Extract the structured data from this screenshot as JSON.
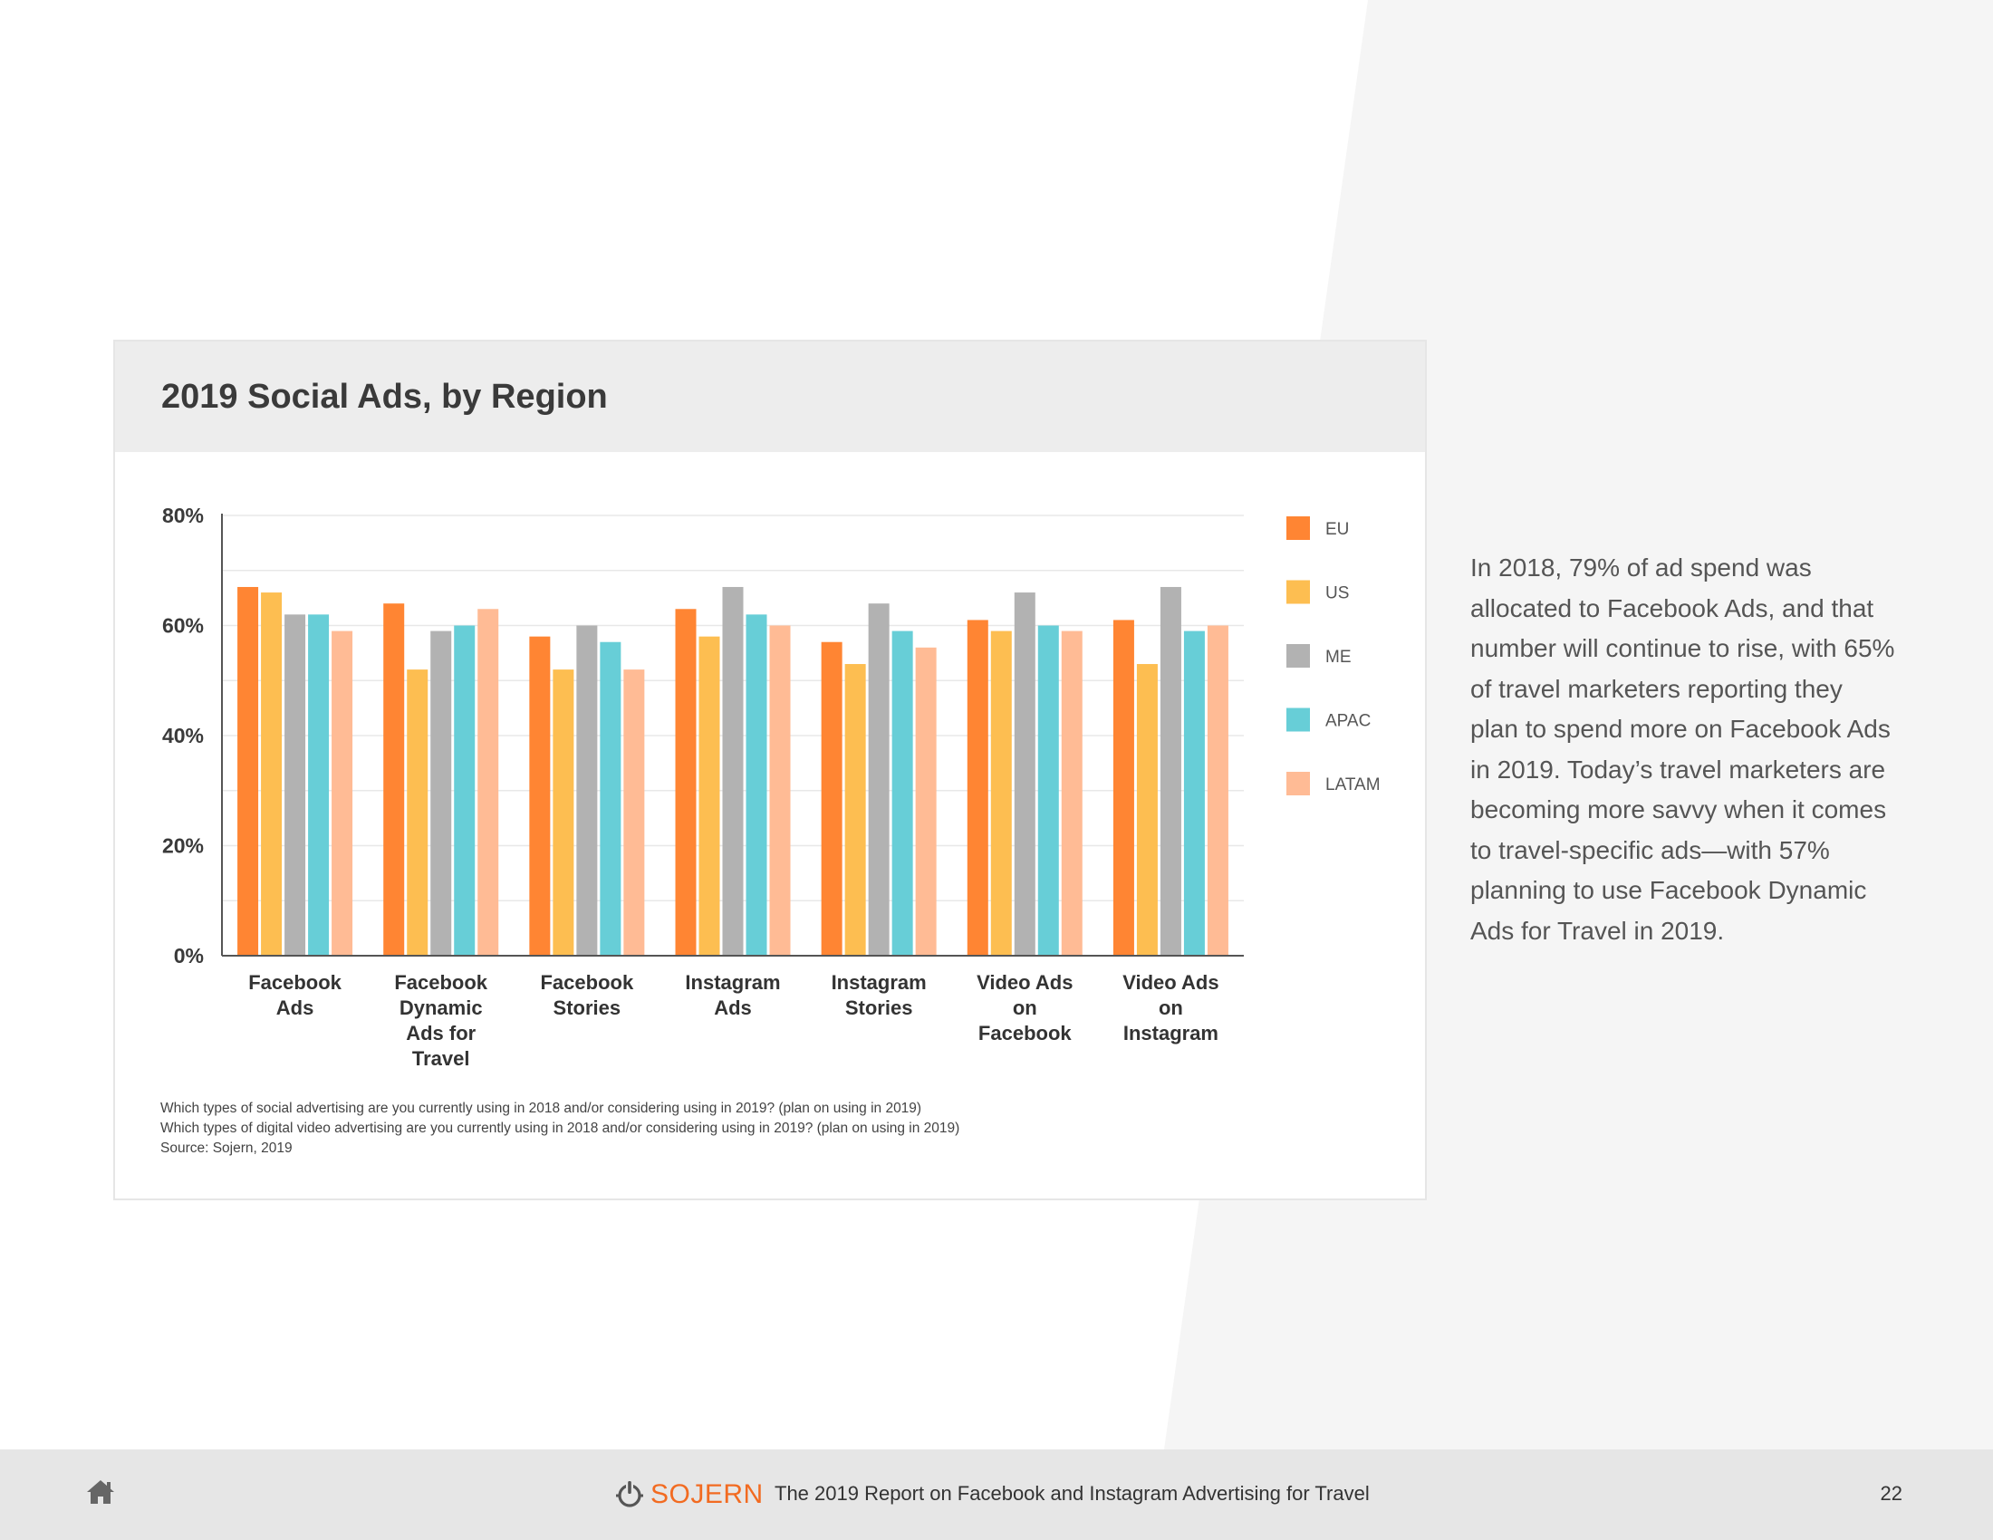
{
  "colors": {
    "EU": "#ff8533",
    "US": "#fdbe51",
    "ME": "#b2b2b2",
    "APAC": "#67ced7",
    "LATAM": "#ffbb95",
    "brand": "#f26b21"
  },
  "chart_data": {
    "type": "bar",
    "title": "2019 Social Ads, by Region",
    "categories": [
      "Facebook Ads",
      "Facebook Dynamic Ads for Travel",
      "Facebook Stories",
      "Instagram Ads",
      "Instagram Stories",
      "Video Ads on Facebook",
      "Video Ads on Instagram"
    ],
    "category_lines": [
      [
        "Facebook",
        "Ads"
      ],
      [
        "Facebook",
        "Dynamic",
        "Ads for",
        "Travel"
      ],
      [
        "Facebook",
        "Stories"
      ],
      [
        "Instagram",
        "Ads"
      ],
      [
        "Instagram",
        "Stories"
      ],
      [
        "Video Ads",
        "on",
        "Facebook"
      ],
      [
        "Video Ads",
        "on",
        "Instagram"
      ]
    ],
    "series": [
      {
        "name": "EU",
        "values": [
          67,
          64,
          58,
          63,
          57,
          61,
          61
        ]
      },
      {
        "name": "US",
        "values": [
          66,
          52,
          52,
          58,
          53,
          59,
          53
        ]
      },
      {
        "name": "ME",
        "values": [
          62,
          59,
          60,
          67,
          64,
          66,
          67
        ]
      },
      {
        "name": "APAC",
        "values": [
          62,
          60,
          57,
          62,
          59,
          60,
          59
        ]
      },
      {
        "name": "LATAM",
        "values": [
          59,
          63,
          52,
          60,
          56,
          59,
          60
        ]
      }
    ],
    "yticks": [
      "0%",
      "20%",
      "40%",
      "60%",
      "80%"
    ],
    "ylim": [
      0,
      80
    ],
    "xlabel": "",
    "ylabel": "",
    "legend_position": "right",
    "grid": true
  },
  "notes": {
    "line1": "Which types of social advertising are you currently using in 2018 and/or considering using in 2019? (plan on using in 2019)",
    "line2": "Which types of digital video advertising are you currently using in 2018 and/or considering using in 2019? (plan on using in 2019)",
    "source": "Source: Sojern, 2019"
  },
  "side_text": "In 2018, 79% of ad spend was allocated to Facebook Ads, and that number will continue to rise, with 65% of travel marketers reporting they plan to spend more on Facebook Ads in 2019. Today’s travel marketers are becoming more savvy when it comes to travel-specific ads—with 57% planning to use Facebook Dynamic Ads for Travel in 2019.",
  "footer": {
    "logo_text": "SOJERN",
    "title": "The 2019 Report on Facebook and Instagram Advertising for Travel",
    "page_number": "22"
  }
}
